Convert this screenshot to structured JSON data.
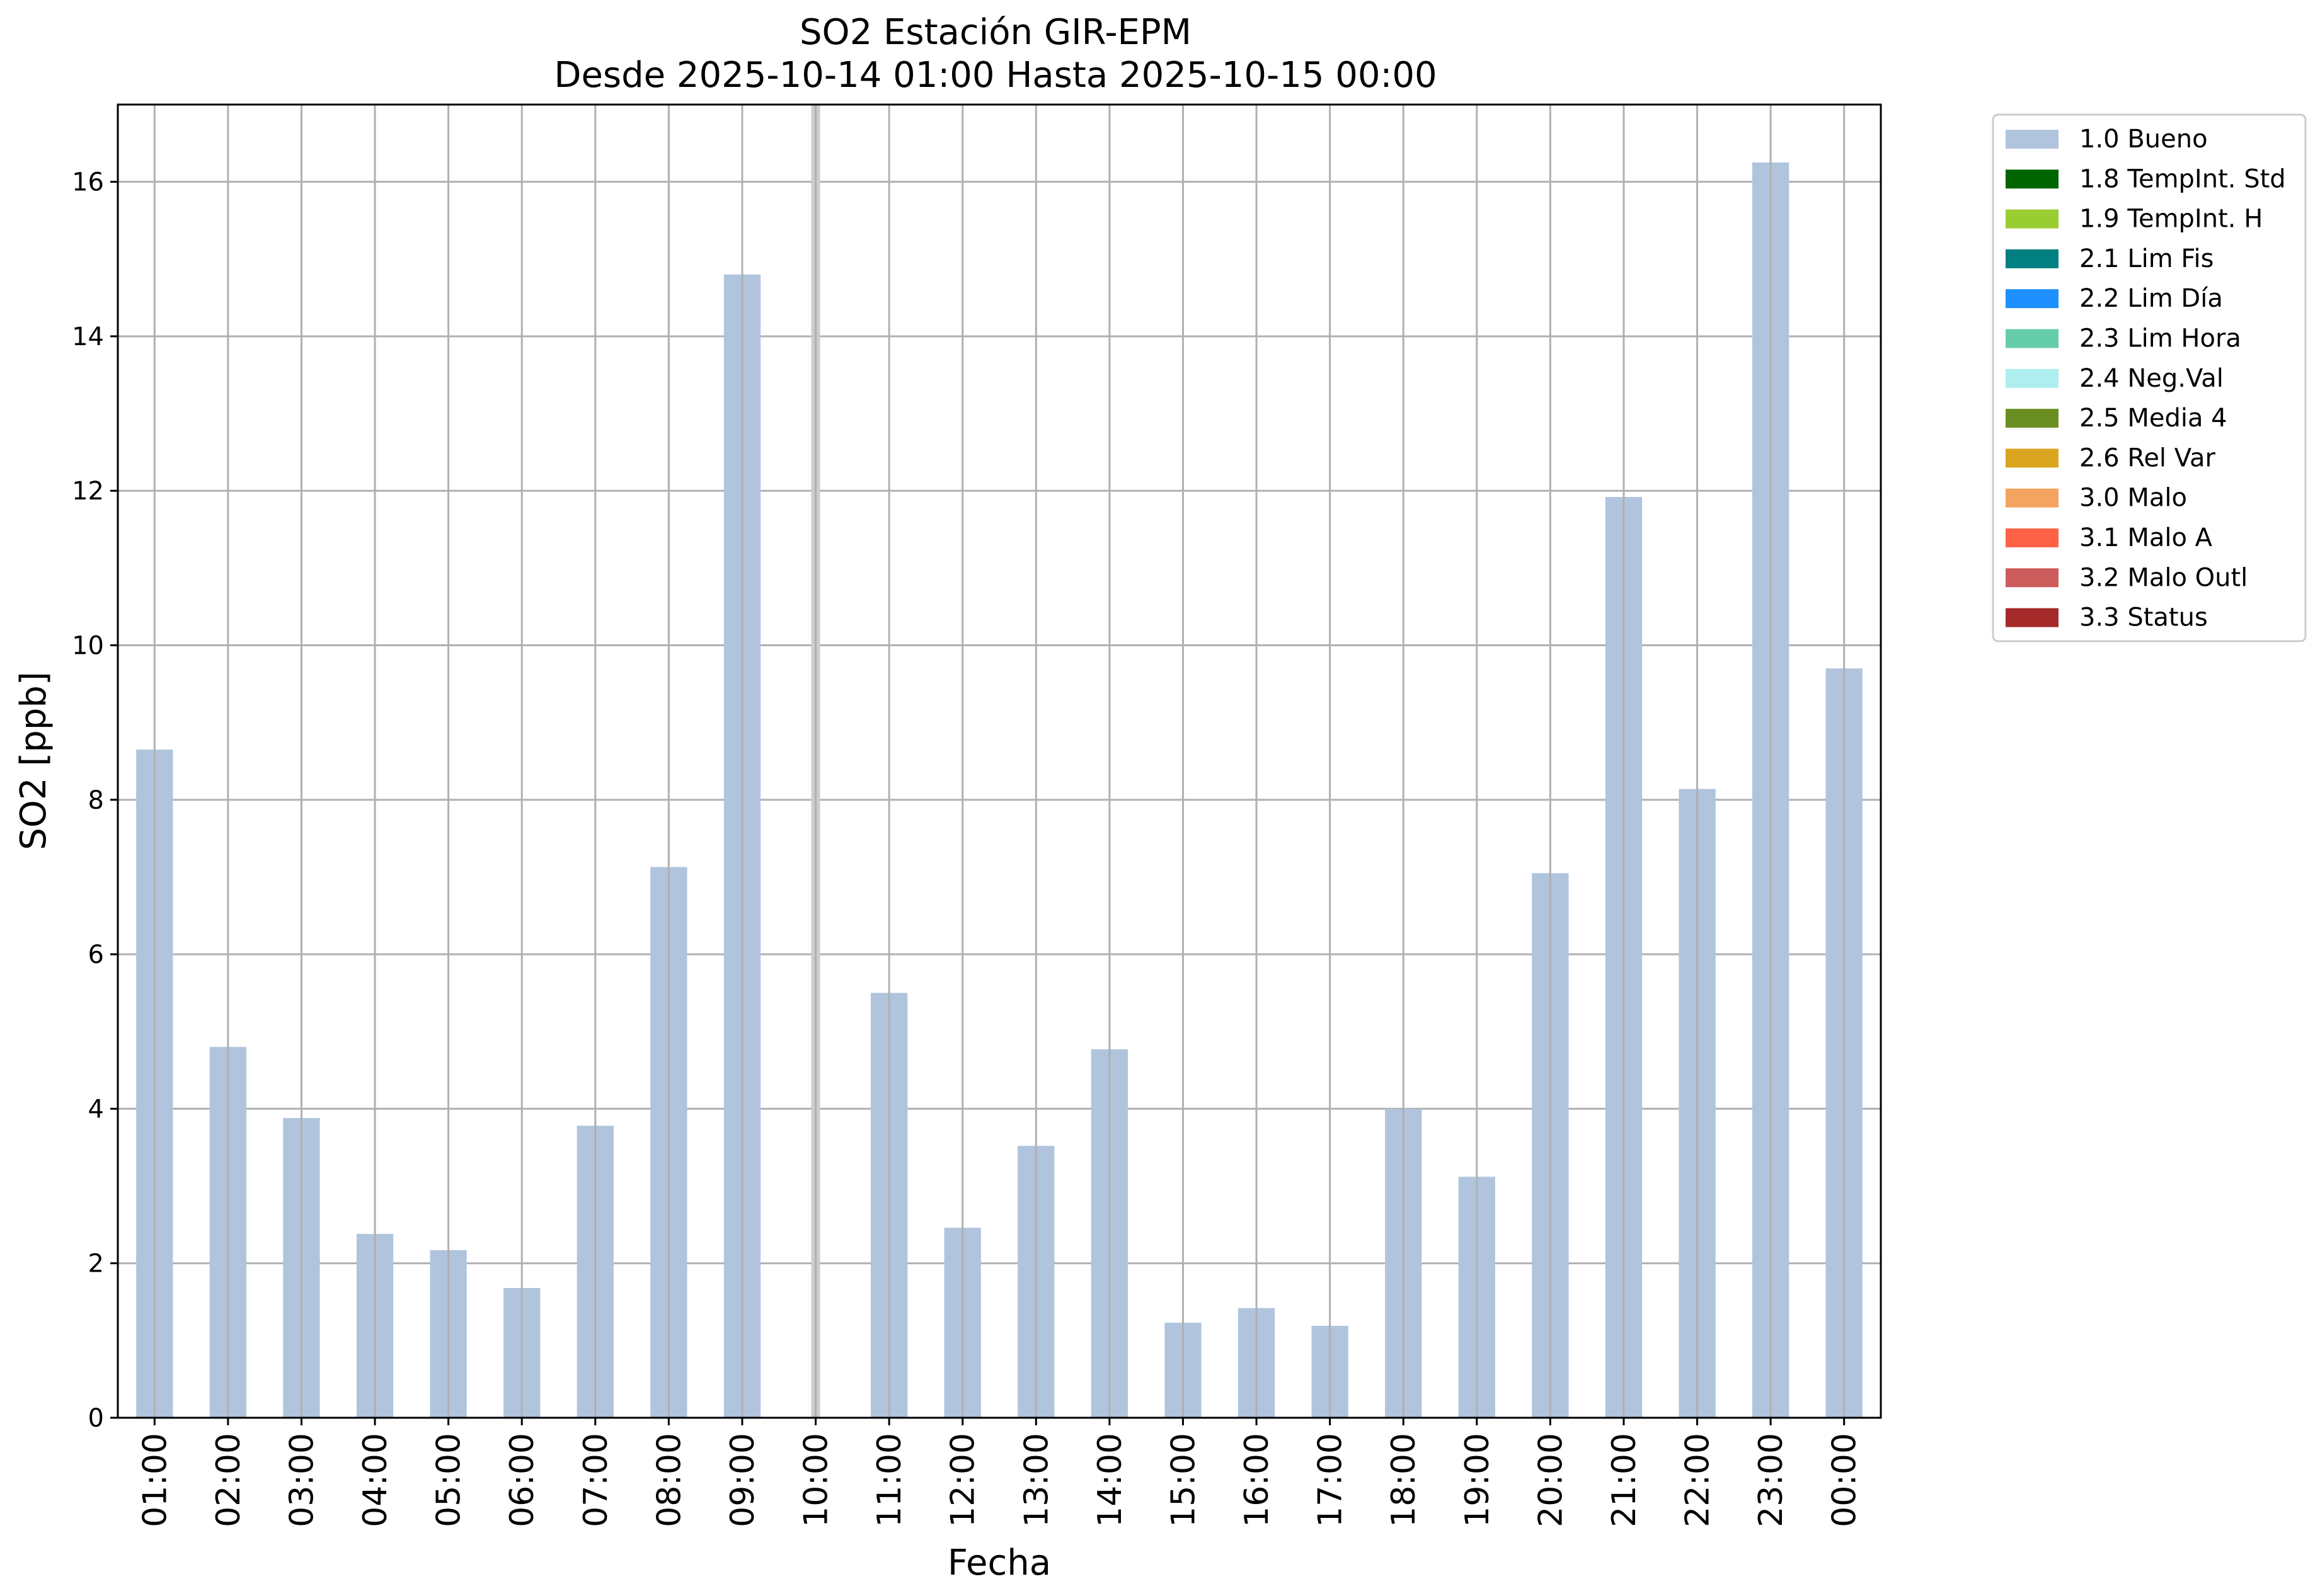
{
  "chart_data": {
    "type": "bar",
    "title": "SO2 Estación GIR-EPM",
    "subtitle": "Desde 2025-10-14 01:00 Hasta 2025-10-15 00:00",
    "xlabel": "Fecha",
    "ylabel": "SO2 [ppb]",
    "categories": [
      "01:00",
      "02:00",
      "03:00",
      "04:00",
      "05:00",
      "06:00",
      "07:00",
      "08:00",
      "09:00",
      "10:00",
      "11:00",
      "12:00",
      "13:00",
      "14:00",
      "15:00",
      "16:00",
      "17:00",
      "18:00",
      "19:00",
      "20:00",
      "21:00",
      "22:00",
      "23:00",
      "00:00"
    ],
    "series": [
      {
        "name": "1.0 Bueno",
        "color": "#b0c4de",
        "values": [
          8.65,
          4.8,
          3.88,
          2.38,
          2.17,
          1.68,
          3.78,
          7.13,
          14.8,
          null,
          5.5,
          2.46,
          3.52,
          4.77,
          1.23,
          1.42,
          1.19,
          4.0,
          3.12,
          7.05,
          11.92,
          8.14,
          16.25,
          9.7
        ]
      }
    ],
    "missing_marker": {
      "category": "10:00",
      "color": "#cccccc"
    },
    "ylim": [
      0,
      17
    ],
    "yticks": [
      0,
      2,
      4,
      6,
      8,
      10,
      12,
      14,
      16
    ],
    "grid": true,
    "legend_position": "outside-right",
    "legend": [
      {
        "label": "1.0 Bueno",
        "color": "#b0c4de"
      },
      {
        "label": "1.8 TempInt. Std",
        "color": "#006400"
      },
      {
        "label": "1.9 TempInt. H",
        "color": "#9acd32"
      },
      {
        "label": "2.1 Lim Fis",
        "color": "#008080"
      },
      {
        "label": "2.2 Lim Día",
        "color": "#1e90ff"
      },
      {
        "label": "2.3 Lim Hora",
        "color": "#66cdaa"
      },
      {
        "label": "2.4 Neg.Val",
        "color": "#afeeee"
      },
      {
        "label": "2.5 Media 4",
        "color": "#6b8e23"
      },
      {
        "label": "2.6 Rel Var",
        "color": "#daa520"
      },
      {
        "label": "3.0 Malo",
        "color": "#f4a460"
      },
      {
        "label": "3.1 Malo A",
        "color": "#ff6347"
      },
      {
        "label": "3.2 Malo Outl",
        "color": "#cd5c5c"
      },
      {
        "label": "3.3 Status",
        "color": "#a52a2a"
      }
    ]
  }
}
